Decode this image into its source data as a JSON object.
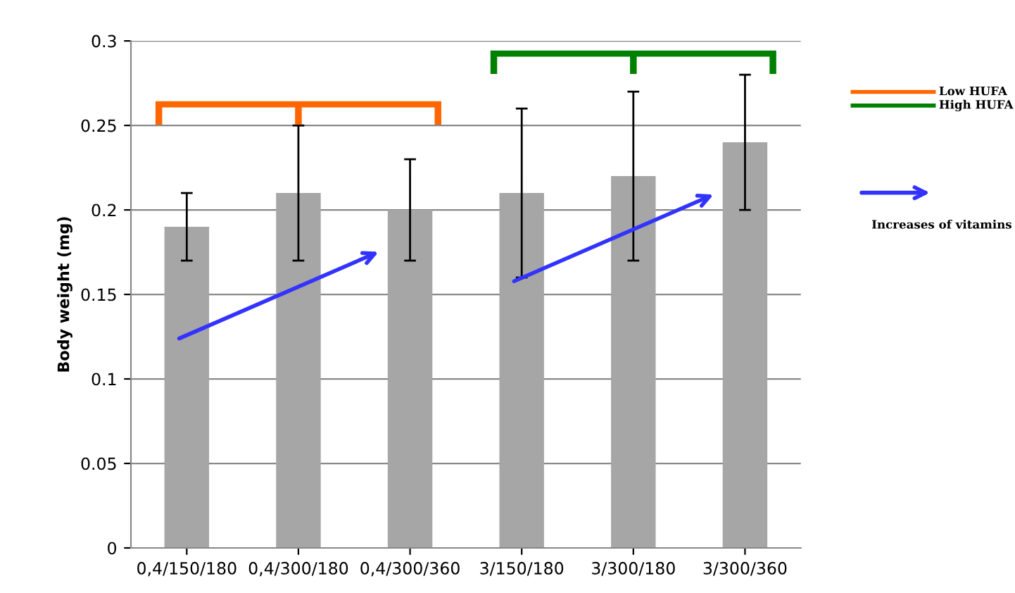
{
  "chart_data": {
    "type": "bar",
    "ylabel": "Body weight (mg)",
    "categories": [
      "0,4/150/180",
      "0,4/300/180",
      "0,4/300/360",
      "3/150/180",
      "3/300/180",
      "3/300/360"
    ],
    "values": [
      0.19,
      0.21,
      0.2,
      0.21,
      0.22,
      0.24
    ],
    "errors": [
      [
        0.17,
        0.21
      ],
      [
        0.17,
        0.25
      ],
      [
        0.17,
        0.23
      ],
      [
        0.16,
        0.26
      ],
      [
        0.17,
        0.27
      ],
      [
        0.2,
        0.28
      ]
    ],
    "color": "#a6a6a6",
    "ylim": [
      0,
      0.3
    ],
    "yticks": [
      0,
      0.05,
      0.1,
      0.15,
      0.2,
      0.25,
      0.3
    ],
    "grid": "y",
    "annotations": [
      "Low HUFA",
      "High HUFA",
      "Increases of vitamins"
    ]
  }
}
